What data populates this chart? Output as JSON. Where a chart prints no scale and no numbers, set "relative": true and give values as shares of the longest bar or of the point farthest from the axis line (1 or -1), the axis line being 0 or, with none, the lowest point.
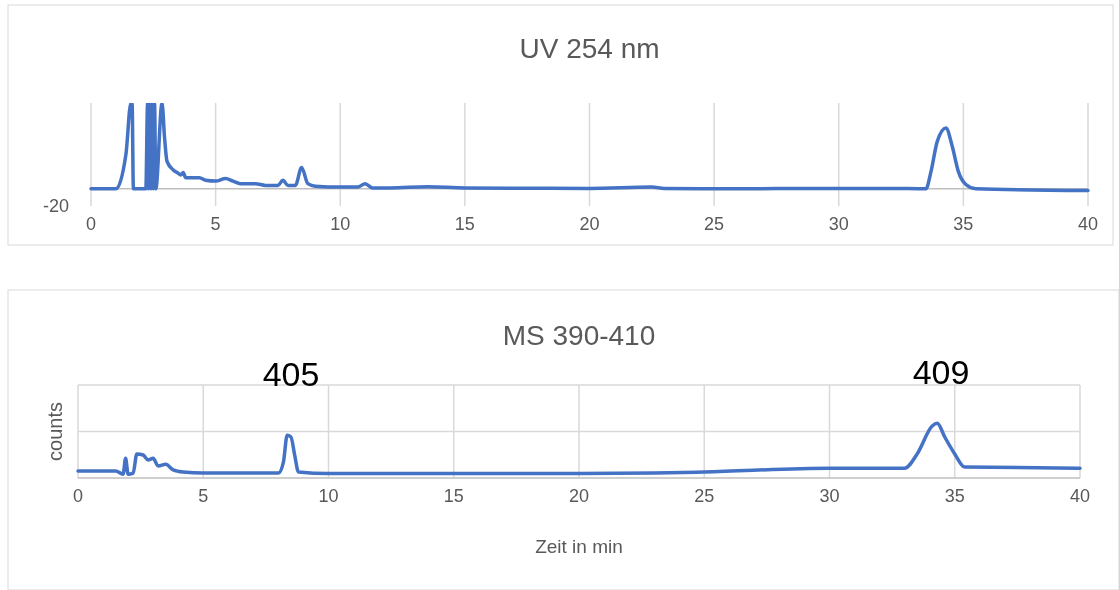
{
  "chart_data": [
    {
      "type": "line",
      "title": "UV 254 nm",
      "relative": true,
      "grid": "x",
      "color": "#4472c4",
      "xlim": [
        0,
        40
      ],
      "xticks": [
        0,
        5,
        10,
        15,
        20,
        25,
        30,
        35,
        40
      ],
      "annotations": [
        "-20"
      ],
      "x": [
        0,
        1.0,
        1.4,
        1.6,
        1.65,
        1.7,
        2.2,
        2.27,
        2.3,
        2.35,
        2.4,
        2.45,
        2.5,
        2.55,
        2.6,
        2.85,
        2.95,
        3.05,
        3.3,
        3.5,
        3.6,
        3.7,
        3.8,
        4.0,
        4.35,
        4.6,
        5.0,
        5.4,
        5.7,
        6.0,
        6.6,
        7.0,
        7.5,
        7.7,
        7.9,
        8.2,
        8.45,
        8.7,
        9.0,
        10,
        10.7,
        11.0,
        11.3,
        12,
        13.5,
        15,
        20,
        22.5,
        23,
        25,
        30,
        32,
        33.5,
        33.7,
        33.95,
        34.3,
        34.55,
        34.8,
        35.1,
        35.5,
        40
      ],
      "values": [
        0,
        0,
        0.4,
        1,
        1,
        0,
        0,
        1,
        0,
        1,
        0,
        1,
        0,
        1,
        0,
        1,
        0.6,
        0.32,
        0.22,
        0.18,
        0.16,
        0.19,
        0.13,
        0.13,
        0.13,
        0.1,
        0.09,
        0.12,
        0.09,
        0.06,
        0.06,
        0.04,
        0.04,
        0.1,
        0.04,
        0.04,
        0.25,
        0.06,
        0.03,
        0.02,
        0.02,
        0.06,
        0.01,
        0.01,
        0.025,
        0.01,
        0.005,
        0.02,
        0.005,
        0,
        0.005,
        0.005,
        0,
        0.2,
        0.55,
        0.71,
        0.5,
        0.2,
        0.05,
        0,
        -0.02
      ]
    },
    {
      "type": "line",
      "title": "MS 390-410",
      "ylabel": "counts",
      "xlabel": "Zeit in min",
      "relative": true,
      "grid": true,
      "color": "#4472c4",
      "xlim": [
        0,
        40
      ],
      "xticks": [
        0,
        5,
        10,
        15,
        20,
        25,
        30,
        35,
        40
      ],
      "annotations": [
        "405",
        "409"
      ],
      "x": [
        0,
        1.5,
        1.8,
        1.9,
        2.0,
        2.2,
        2.35,
        2.6,
        2.8,
        3.0,
        3.2,
        3.5,
        3.8,
        4.2,
        5,
        8.0,
        8.2,
        8.35,
        8.5,
        8.65,
        8.8,
        10,
        20,
        23,
        25,
        30,
        33,
        33.5,
        34.1,
        34.3,
        34.6,
        35,
        35.4,
        40
      ],
      "values": [
        0.13,
        0.13,
        0.07,
        0.36,
        0.07,
        0.09,
        0.44,
        0.42,
        0.33,
        0.36,
        0.22,
        0.25,
        0.15,
        0.11,
        0.09,
        0.09,
        0.29,
        0.78,
        0.75,
        0.42,
        0.11,
        0.08,
        0.08,
        0.09,
        0.11,
        0.18,
        0.18,
        0.44,
        0.95,
        1,
        0.75,
        0.44,
        0.2,
        0.18
      ]
    }
  ]
}
